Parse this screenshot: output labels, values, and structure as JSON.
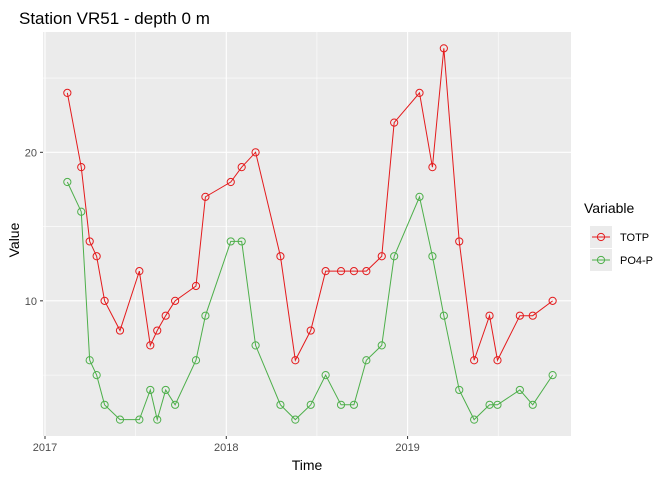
{
  "chart_data": {
    "type": "line",
    "title": "Station VR51 - depth 0 m",
    "xlabel": "Time",
    "ylabel": "Value",
    "x_ticks": [
      {
        "value": "2017-01-01",
        "label": "2017"
      },
      {
        "value": "2018-01-01",
        "label": "2018"
      },
      {
        "value": "2019-01-01",
        "label": "2019"
      }
    ],
    "y_ticks": [
      10,
      20
    ],
    "xlim": [
      "2016-12-28",
      "2019-11-26"
    ],
    "ylim": [
      0.9,
      28.1
    ],
    "grid": true,
    "legend": {
      "title": "Variable",
      "position": "right"
    },
    "series": [
      {
        "name": "TOTP",
        "color": "#e41a1c",
        "points": [
          [
            "2017-02-15",
            24
          ],
          [
            "2017-03-15",
            19
          ],
          [
            "2017-04-01",
            14
          ],
          [
            "2017-04-15",
            13
          ],
          [
            "2017-05-01",
            10
          ],
          [
            "2017-06-01",
            8
          ],
          [
            "2017-07-10",
            12
          ],
          [
            "2017-08-01",
            7
          ],
          [
            "2017-08-15",
            8
          ],
          [
            "2017-09-01",
            9
          ],
          [
            "2017-09-20",
            10
          ],
          [
            "2017-11-01",
            11
          ],
          [
            "2017-11-20",
            17
          ],
          [
            "2018-01-10",
            18
          ],
          [
            "2018-02-01",
            19
          ],
          [
            "2018-03-01",
            20
          ],
          [
            "2018-04-20",
            13
          ],
          [
            "2018-05-20",
            6
          ],
          [
            "2018-06-20",
            8
          ],
          [
            "2018-07-20",
            12
          ],
          [
            "2018-08-20",
            12
          ],
          [
            "2018-09-15",
            12
          ],
          [
            "2018-10-10",
            12
          ],
          [
            "2018-11-10",
            13
          ],
          [
            "2018-12-05",
            22
          ],
          [
            "2019-01-25",
            24
          ],
          [
            "2019-02-20",
            19
          ],
          [
            "2019-03-15",
            27
          ],
          [
            "2019-04-15",
            14
          ],
          [
            "2019-05-15",
            6
          ],
          [
            "2019-06-15",
            9
          ],
          [
            "2019-07-01",
            6
          ],
          [
            "2019-08-15",
            9
          ],
          [
            "2019-09-10",
            9
          ],
          [
            "2019-10-20",
            10
          ]
        ]
      },
      {
        "name": "PO4-P",
        "color": "#4daf4a",
        "points": [
          [
            "2017-02-15",
            18
          ],
          [
            "2017-03-15",
            16
          ],
          [
            "2017-04-01",
            6
          ],
          [
            "2017-04-15",
            5
          ],
          [
            "2017-05-01",
            3
          ],
          [
            "2017-06-01",
            2
          ],
          [
            "2017-07-10",
            2
          ],
          [
            "2017-08-01",
            4
          ],
          [
            "2017-08-15",
            2
          ],
          [
            "2017-09-01",
            4
          ],
          [
            "2017-09-20",
            3
          ],
          [
            "2017-11-01",
            6
          ],
          [
            "2017-11-20",
            9
          ],
          [
            "2018-01-10",
            14
          ],
          [
            "2018-02-01",
            14
          ],
          [
            "2018-03-01",
            7
          ],
          [
            "2018-04-20",
            3
          ],
          [
            "2018-05-20",
            2
          ],
          [
            "2018-06-20",
            3
          ],
          [
            "2018-07-20",
            5
          ],
          [
            "2018-08-20",
            3
          ],
          [
            "2018-09-15",
            3
          ],
          [
            "2018-10-10",
            6
          ],
          [
            "2018-11-10",
            7
          ],
          [
            "2018-12-05",
            13
          ],
          [
            "2019-01-25",
            17
          ],
          [
            "2019-02-20",
            13
          ],
          [
            "2019-03-15",
            9
          ],
          [
            "2019-04-15",
            4
          ],
          [
            "2019-05-15",
            2
          ],
          [
            "2019-06-15",
            3
          ],
          [
            "2019-07-01",
            3
          ],
          [
            "2019-08-15",
            4
          ],
          [
            "2019-09-10",
            3
          ],
          [
            "2019-10-20",
            5
          ]
        ]
      }
    ]
  }
}
